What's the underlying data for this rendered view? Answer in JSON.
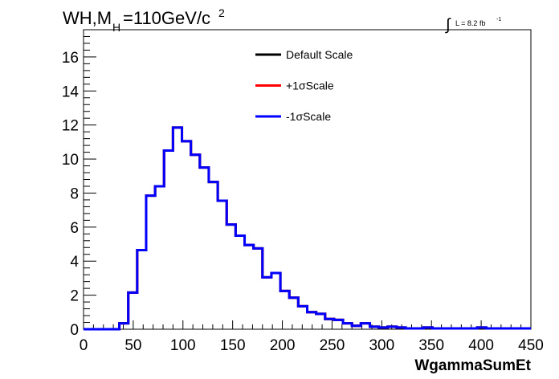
{
  "chart_data": {
    "type": "line",
    "title": {
      "main": "WH,M",
      "sub": "H",
      "tail": "=110GeV/c",
      "sup": "2"
    },
    "lumi": {
      "integral": "∫",
      "label": "L = 8.2 fb",
      "sup": "-1"
    },
    "xlabel": "WgammaSumEt",
    "ylabel": "",
    "xlim": [
      0,
      450
    ],
    "ylim": [
      0,
      17.6
    ],
    "x_ticks": [
      0,
      50,
      100,
      150,
      200,
      250,
      300,
      350,
      400,
      450
    ],
    "y_ticks": [
      0,
      2,
      4,
      6,
      8,
      10,
      12,
      14,
      16
    ],
    "bin_width": 9,
    "legend_position": "top-center",
    "series": [
      {
        "name": "Default Scale",
        "color": "#000000",
        "values": [
          0,
          0,
          0,
          0,
          0.35,
          2.15,
          4.65,
          7.85,
          8.4,
          10.5,
          11.85,
          11.05,
          10.25,
          9.5,
          8.65,
          7.55,
          6.15,
          5.5,
          4.95,
          4.75,
          3.05,
          3.3,
          2.25,
          1.85,
          1.35,
          1.0,
          0.9,
          0.6,
          0.55,
          0.35,
          0.2,
          0.35,
          0.15,
          0.1,
          0.15,
          0.1,
          0.05,
          0.05,
          0.1,
          0.05,
          0.05,
          0.05,
          0.05,
          0.05,
          0.1,
          0.05,
          0.05,
          0.05,
          0.05,
          0.05
        ]
      },
      {
        "name": "+1σScale",
        "color": "#ff0000",
        "values": [
          0,
          0,
          0,
          0,
          0.35,
          2.15,
          4.65,
          7.85,
          8.4,
          10.5,
          11.85,
          11.05,
          10.25,
          9.5,
          8.65,
          7.55,
          6.15,
          5.5,
          4.95,
          4.75,
          3.05,
          3.3,
          2.25,
          1.85,
          1.35,
          1.0,
          0.9,
          0.6,
          0.55,
          0.35,
          0.2,
          0.35,
          0.15,
          0.1,
          0.15,
          0.1,
          0.05,
          0.05,
          0.1,
          0.05,
          0.05,
          0.05,
          0.05,
          0.05,
          0.1,
          0.05,
          0.05,
          0.05,
          0.05,
          0.05
        ]
      },
      {
        "name": "-1σScale",
        "color": "#0000ff",
        "values": [
          0,
          0,
          0,
          0,
          0.35,
          2.15,
          4.65,
          7.85,
          8.4,
          10.5,
          11.85,
          11.05,
          10.25,
          9.5,
          8.65,
          7.55,
          6.15,
          5.5,
          4.95,
          4.75,
          3.05,
          3.3,
          2.25,
          1.85,
          1.35,
          1.0,
          0.9,
          0.6,
          0.55,
          0.35,
          0.2,
          0.35,
          0.15,
          0.1,
          0.15,
          0.1,
          0.05,
          0.05,
          0.1,
          0.05,
          0.05,
          0.05,
          0.05,
          0.05,
          0.1,
          0.05,
          0.05,
          0.05,
          0.05,
          0.05
        ]
      }
    ]
  }
}
